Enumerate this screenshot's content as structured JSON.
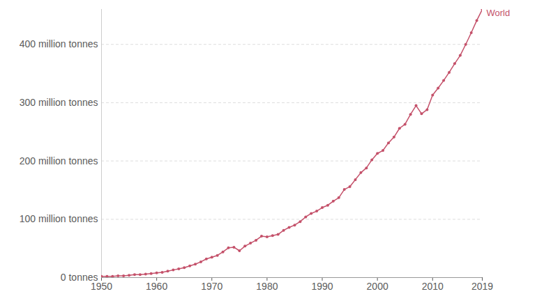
{
  "chart_data": {
    "type": "line",
    "x": [
      1950,
      1951,
      1952,
      1953,
      1954,
      1955,
      1956,
      1957,
      1958,
      1959,
      1960,
      1961,
      1962,
      1963,
      1964,
      1965,
      1966,
      1967,
      1968,
      1969,
      1970,
      1971,
      1972,
      1973,
      1974,
      1975,
      1976,
      1977,
      1978,
      1979,
      1980,
      1981,
      1982,
      1983,
      1984,
      1985,
      1986,
      1987,
      1988,
      1989,
      1990,
      1991,
      1992,
      1993,
      1994,
      1995,
      1996,
      1997,
      1998,
      1999,
      2000,
      2001,
      2002,
      2003,
      2004,
      2005,
      2006,
      2007,
      2008,
      2009,
      2010,
      2011,
      2012,
      2013,
      2014,
      2015,
      2016,
      2017,
      2018,
      2019
    ],
    "series": [
      {
        "name": "World",
        "color": "#c4516a",
        "marker": "circle",
        "values": [
          2,
          2,
          2,
          3,
          3,
          4,
          5,
          5,
          6,
          7,
          8,
          9,
          11,
          13,
          15,
          17,
          20,
          23,
          27,
          32,
          35,
          38,
          44,
          51,
          52,
          46,
          54,
          59,
          64,
          71,
          70,
          72,
          74,
          81,
          86,
          90,
          96,
          104,
          110,
          114,
          120,
          124,
          131,
          137,
          151,
          156,
          168,
          180,
          188,
          202,
          213,
          218,
          231,
          241,
          256,
          263,
          280,
          295,
          281,
          288,
          313,
          325,
          338,
          352,
          367,
          381,
          400,
          420,
          441,
          460
        ]
      }
    ],
    "xlim": [
      1950,
      2019
    ],
    "xticks": [
      1950,
      1960,
      1970,
      1980,
      1990,
      2000,
      2010,
      2019
    ],
    "ylim": [
      0,
      460
    ],
    "yticks": [
      {
        "value": 0,
        "label": "0 tonnes"
      },
      {
        "value": 100,
        "label": "100 million tonnes"
      },
      {
        "value": 200,
        "label": "200 million tonnes"
      },
      {
        "value": 300,
        "label": "300 million tonnes"
      },
      {
        "value": 400,
        "label": "400 million tonnes"
      }
    ],
    "grid": true
  }
}
